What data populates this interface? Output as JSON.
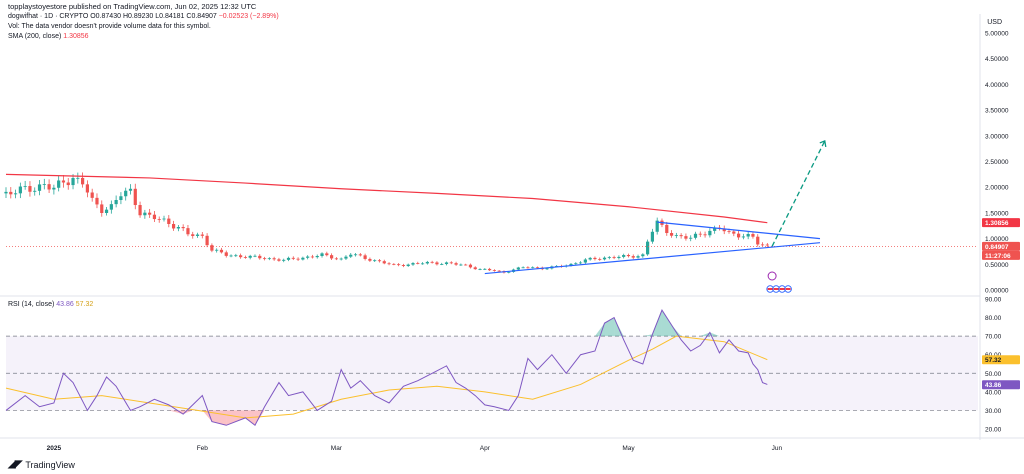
{
  "attribution": "topplaystoyestore published on TradingView.com, Jun 02, 2025 12:32 UTC",
  "legend": {
    "symbol": "dogwifhat · 1D · CRYPTO",
    "open": "O0.87430",
    "high": "H0.89230",
    "low": "L0.84181",
    "close": "C0.84907",
    "change": "−0.02523 (−2.89%)",
    "vol": "Vol: The data vendor doesn't provide volume data for this symbol.",
    "sma_label": "SMA (200, close)",
    "sma_value": "1.30856",
    "rsi_label": "RSI (14, close)",
    "rsi_value": "43.86",
    "rsi_ma_value": "57.32"
  },
  "currency": "USD",
  "brand": "TradingView",
  "badges": {
    "sma": "1.30856",
    "price": "0.84907",
    "countdown": "11:27:06",
    "rsi_ma": "57.32",
    "rsi": "43.86"
  },
  "colors": {
    "up": "#26a69a",
    "down": "#ef5350",
    "sma": "#f23645",
    "trendline": "#2962ff",
    "projection": "#089981",
    "rsi": "#7e57c2",
    "rsi_ma": "#fbc02d"
  },
  "chart_data": [
    {
      "type": "candlestick",
      "title": "dogwifhat · 1D · CRYPTO",
      "ylim": [
        0,
        5.0
      ],
      "y_ticks": [
        "0.00000",
        "0.50000",
        "1.00000",
        "1.50000",
        "2.00000",
        "2.50000",
        "3.00000",
        "3.50000",
        "4.00000",
        "4.50000",
        "5.00000"
      ],
      "y_tick_values": [
        0,
        0.5,
        1.0,
        1.5,
        2.0,
        2.5,
        3.0,
        3.5,
        4.0,
        4.5,
        5.0
      ],
      "x_ticks": [
        "2025",
        "Feb",
        "Mar",
        "Apr",
        "May",
        "Jun"
      ],
      "x_tick_days": [
        0,
        31,
        59,
        90,
        120,
        151
      ],
      "x_range_days": [
        -10,
        193
      ],
      "sma": {
        "name": "SMA (200, close)",
        "days": [
          -10,
          20,
          40,
          60,
          80,
          100,
          120,
          140,
          149
        ],
        "values": [
          2.25,
          2.18,
          2.08,
          1.97,
          1.88,
          1.78,
          1.62,
          1.42,
          1.31
        ]
      },
      "anchors_close": [
        [
          -10,
          1.88
        ],
        [
          -6,
          1.95
        ],
        [
          -2,
          2.05
        ],
        [
          0,
          1.95
        ],
        [
          2,
          2.12
        ],
        [
          4,
          2.18
        ],
        [
          6,
          2.08
        ],
        [
          8,
          1.72
        ],
        [
          10,
          1.58
        ],
        [
          12,
          1.62
        ],
        [
          14,
          1.85
        ],
        [
          16,
          1.92
        ],
        [
          18,
          1.52
        ],
        [
          20,
          1.42
        ],
        [
          23,
          1.35
        ],
        [
          26,
          1.22
        ],
        [
          28,
          1.08
        ],
        [
          31,
          1.05
        ],
        [
          33,
          0.78
        ],
        [
          36,
          0.68
        ],
        [
          40,
          0.65
        ],
        [
          44,
          0.62
        ],
        [
          48,
          0.58
        ],
        [
          52,
          0.63
        ],
        [
          56,
          0.68
        ],
        [
          60,
          0.6
        ],
        [
          62,
          0.7
        ],
        [
          65,
          0.62
        ],
        [
          68,
          0.55
        ],
        [
          71,
          0.48
        ],
        [
          74,
          0.5
        ],
        [
          78,
          0.53
        ],
        [
          82,
          0.52
        ],
        [
          86,
          0.48
        ],
        [
          89,
          0.4
        ],
        [
          92,
          0.38
        ],
        [
          94,
          0.34
        ],
        [
          96,
          0.4
        ],
        [
          99,
          0.45
        ],
        [
          102,
          0.42
        ],
        [
          105,
          0.45
        ],
        [
          108,
          0.5
        ],
        [
          111,
          0.58
        ],
        [
          114,
          0.62
        ],
        [
          117,
          0.64
        ],
        [
          120,
          0.65
        ],
        [
          123,
          0.68
        ],
        [
          124,
          0.95
        ],
        [
          125,
          1.15
        ],
        [
          126,
          1.3
        ],
        [
          128,
          1.15
        ],
        [
          130,
          1.05
        ],
        [
          133,
          1.0
        ],
        [
          135,
          1.1
        ],
        [
          137,
          1.15
        ],
        [
          139,
          1.2
        ],
        [
          141,
          1.1
        ],
        [
          143,
          1.08
        ],
        [
          145,
          1.05
        ],
        [
          146,
          1.02
        ],
        [
          147,
          0.9
        ],
        [
          148,
          0.87
        ],
        [
          149,
          0.849
        ]
      ],
      "trendlines": [
        {
          "name": "upper",
          "points": [
            [
              126,
              1.32
            ],
            [
              160,
              1.0
            ]
          ]
        },
        {
          "name": "lower",
          "points": [
            [
              90,
              0.32
            ],
            [
              160,
              0.92
            ]
          ]
        }
      ],
      "projection": {
        "points": [
          [
            150,
            0.85
          ],
          [
            161,
            2.9
          ]
        ]
      },
      "current_price": 0.84907
    },
    {
      "type": "line",
      "title": "RSI (14, close)",
      "ylim": [
        20,
        90
      ],
      "y_ticks": [
        "20.00",
        "30.00",
        "40.00",
        "50.00",
        "60.00",
        "70.00",
        "80.00",
        "90.00"
      ],
      "y_tick_values": [
        20,
        30,
        40,
        50,
        60,
        70,
        80,
        90
      ],
      "bands": {
        "upper": 70,
        "middle": 50,
        "lower": 30
      },
      "x_range_days": [
        -10,
        193
      ],
      "series": [
        {
          "name": "RSI",
          "days": [
            -10,
            -6,
            -3,
            0,
            2,
            4,
            7,
            9,
            11,
            13,
            16,
            18,
            21,
            24,
            27,
            29,
            31,
            33,
            36,
            40,
            42,
            44,
            47,
            49,
            52,
            55,
            58,
            60,
            62,
            64,
            67,
            70,
            73,
            76,
            79,
            82,
            84,
            86,
            88,
            90,
            92,
            95,
            97,
            99,
            101,
            104,
            107,
            110,
            113,
            115,
            117,
            119,
            121,
            123,
            125,
            127,
            129,
            131,
            133,
            135,
            137,
            139,
            141,
            143,
            145,
            146,
            147,
            148,
            149
          ],
          "values": [
            30,
            38,
            32,
            34,
            50,
            45,
            30,
            38,
            48,
            43,
            30,
            32,
            36,
            33,
            28,
            33,
            38,
            24,
            22,
            26,
            22,
            32,
            45,
            38,
            40,
            30,
            35,
            52,
            42,
            46,
            38,
            34,
            43,
            46,
            50,
            54,
            45,
            42,
            38,
            33,
            32,
            30,
            38,
            58,
            52,
            60,
            50,
            60,
            62,
            77,
            80,
            68,
            57,
            55,
            71,
            84,
            76,
            68,
            62,
            65,
            72,
            61,
            68,
            62,
            61,
            55,
            52,
            45,
            44
          ]
        },
        {
          "name": "RSI-based MA",
          "days": [
            -10,
            0,
            10,
            20,
            30,
            40,
            50,
            60,
            70,
            80,
            90,
            100,
            110,
            120,
            125,
            130,
            140,
            149
          ],
          "values": [
            42,
            36,
            38,
            34,
            30,
            26,
            28,
            36,
            41,
            43,
            40,
            36,
            44,
            57,
            63,
            70,
            67,
            57.32
          ]
        }
      ]
    }
  ]
}
